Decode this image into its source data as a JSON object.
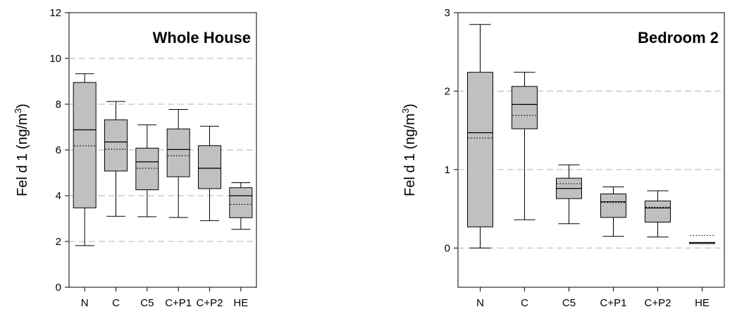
{
  "chart_data": [
    {
      "type": "box",
      "title": "Whole House",
      "ylabel_main": "Fel d 1 (ng/m",
      "ylabel_sup": "3",
      "ylabel_tail": ")",
      "xlabel": "",
      "ylim": [
        0,
        12
      ],
      "yticks": [
        "0",
        "2",
        "4",
        "6",
        "8",
        "10",
        "12"
      ],
      "grid": "horizontal-dashed",
      "categories": [
        "N",
        "C",
        "C5",
        "C+P1",
        "C+P2",
        "HE"
      ],
      "boxes": [
        {
          "whisker_low": 1.82,
          "q1": 3.47,
          "median": 6.88,
          "mean": 6.18,
          "q3": 8.95,
          "whisker_high": 9.33
        },
        {
          "whisker_low": 3.1,
          "q1": 5.08,
          "median": 6.35,
          "mean": 6.03,
          "q3": 7.32,
          "whisker_high": 8.12
        },
        {
          "whisker_low": 3.08,
          "q1": 4.26,
          "median": 5.48,
          "mean": 5.2,
          "q3": 6.08,
          "whisker_high": 7.1
        },
        {
          "whisker_low": 3.05,
          "q1": 4.83,
          "median": 6.02,
          "mean": 5.75,
          "q3": 6.92,
          "whisker_high": 7.77
        },
        {
          "whisker_low": 2.91,
          "q1": 4.31,
          "median": 5.2,
          "mean": 5.2,
          "q3": 6.19,
          "whisker_high": 7.04
        },
        {
          "whisker_low": 2.53,
          "q1": 3.04,
          "median": 4.0,
          "mean": 3.62,
          "q3": 4.35,
          "whisker_high": 4.57
        }
      ]
    },
    {
      "type": "box",
      "title": "Bedroom 2",
      "ylabel_main": "Fel d 1 (ng/m",
      "ylabel_sup": "3",
      "ylabel_tail": ")",
      "xlabel": "",
      "ylim": [
        -0.5,
        3
      ],
      "yticks": [
        "0",
        "1",
        "2",
        "3"
      ],
      "ytick_values": [
        0,
        1,
        2,
        3
      ],
      "grid": "horizontal-dashed",
      "categories": [
        "N",
        "C",
        "C5",
        "C+P1",
        "C+P2",
        "HE"
      ],
      "boxes": [
        {
          "whisker_low": 0.0,
          "q1": 0.27,
          "median": 1.47,
          "mean": 1.4,
          "q3": 2.24,
          "whisker_high": 2.85
        },
        {
          "whisker_low": 0.36,
          "q1": 1.52,
          "median": 1.83,
          "mean": 1.69,
          "q3": 2.06,
          "whisker_high": 2.24
        },
        {
          "whisker_low": 0.31,
          "q1": 0.63,
          "median": 0.76,
          "mean": 0.82,
          "q3": 0.89,
          "whisker_high": 1.06
        },
        {
          "whisker_low": 0.15,
          "q1": 0.39,
          "median": 0.59,
          "mean": 0.58,
          "q3": 0.69,
          "whisker_high": 0.78
        },
        {
          "whisker_low": 0.14,
          "q1": 0.33,
          "median": 0.51,
          "mean": 0.52,
          "q3": 0.6,
          "whisker_high": 0.73
        },
        {
          "whisker_low": 0.06,
          "q1": 0.06,
          "median": 0.07,
          "mean": 0.16,
          "q3": 0.07,
          "whisker_high": 0.07
        }
      ]
    }
  ]
}
